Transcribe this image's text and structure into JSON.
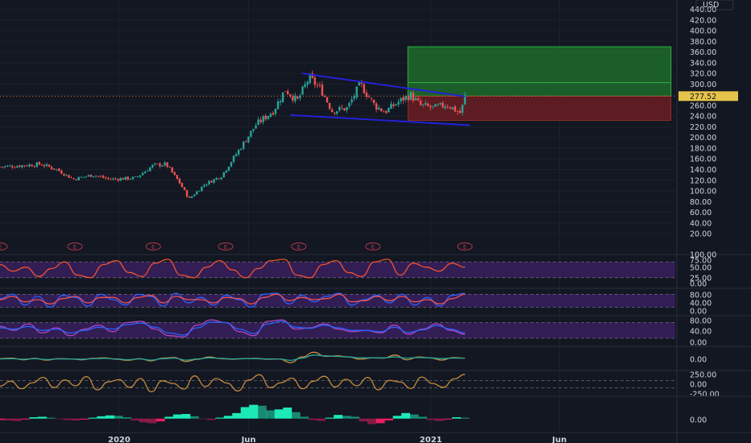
{
  "currency": "USD",
  "current_price_label": "277.52",
  "earnings_marker": "E",
  "colors": {
    "background": "#131722",
    "up": "#26a69a",
    "down": "#ef5350",
    "trendline": "#2421d6",
    "target_zone": "#1f6b2b",
    "stop_zone": "#6b1c22",
    "osc_band": "#3a1f5e",
    "rsi_line": "#f0532e",
    "stoch_k": "#2962ff",
    "stoch_d": "#ef5350",
    "osc3_line": "#ab47bc",
    "osc3_line2": "#2962ff",
    "cci_line": "#c68b3c",
    "ao_up": "#1de9b6",
    "ao_down": "#e91e63",
    "price_tag": "#e6c34a"
  },
  "chart_data": [
    {
      "type": "candlestick",
      "title": "",
      "ylabel": "USD",
      "ylim": [
        5,
        450
      ],
      "yticks": [
        20,
        40,
        60,
        80,
        100,
        120,
        140,
        160,
        180,
        200,
        220,
        240,
        260,
        280,
        300,
        320,
        340,
        360,
        380,
        400,
        420,
        440
      ],
      "ytick_labels": [
        "20.00",
        "40.00",
        "60.00",
        "80.00",
        "100.00",
        "120.00",
        "140.00",
        "160.00",
        "180.00",
        "200.00",
        "220.00",
        "240.00",
        "260.00",
        "280.00",
        "300.00",
        "320.00",
        "340.00",
        "360.00",
        "380.00",
        "400.00",
        "420.00",
        "440.00"
      ],
      "x_labels": [
        "2020",
        "Jun",
        "2021",
        "Jun"
      ],
      "x_label_dates": [
        "2020-01-01",
        "2020-06-01",
        "2021-01-01",
        "2021-06-01"
      ],
      "x_range": [
        "2019-08-14",
        "2021-10-15"
      ],
      "price_path": [
        {
          "date": "2019-08-14",
          "price": 145
        },
        {
          "date": "2019-10-01",
          "price": 150
        },
        {
          "date": "2019-10-20",
          "price": 140
        },
        {
          "date": "2019-11-08",
          "price": 122
        },
        {
          "date": "2019-12-01",
          "price": 130
        },
        {
          "date": "2019-12-20",
          "price": 122
        },
        {
          "date": "2020-01-20",
          "price": 124
        },
        {
          "date": "2020-02-10",
          "price": 148
        },
        {
          "date": "2020-02-25",
          "price": 150
        },
        {
          "date": "2020-03-12",
          "price": 115
        },
        {
          "date": "2020-03-23",
          "price": 85
        },
        {
          "date": "2020-04-02",
          "price": 100
        },
        {
          "date": "2020-04-10",
          "price": 112
        },
        {
          "date": "2020-04-30",
          "price": 128
        },
        {
          "date": "2020-05-22",
          "price": 180
        },
        {
          "date": "2020-06-10",
          "price": 225
        },
        {
          "date": "2020-06-30",
          "price": 250
        },
        {
          "date": "2020-07-14",
          "price": 290
        },
        {
          "date": "2020-07-28",
          "price": 268
        },
        {
          "date": "2020-08-11",
          "price": 312
        },
        {
          "date": "2020-08-25",
          "price": 290
        },
        {
          "date": "2020-09-07",
          "price": 250
        },
        {
          "date": "2020-09-25",
          "price": 255
        },
        {
          "date": "2020-10-10",
          "price": 300
        },
        {
          "date": "2020-10-27",
          "price": 260
        },
        {
          "date": "2020-11-08",
          "price": 248
        },
        {
          "date": "2020-11-25",
          "price": 268
        },
        {
          "date": "2020-12-08",
          "price": 280
        },
        {
          "date": "2020-12-20",
          "price": 260
        },
        {
          "date": "2021-01-05",
          "price": 255
        },
        {
          "date": "2021-01-20",
          "price": 262
        },
        {
          "date": "2021-02-05",
          "price": 245
        },
        {
          "date": "2021-02-10",
          "price": 277
        }
      ],
      "trendlines": [
        {
          "from": {
            "date": "2020-08-03",
            "price": 320
          },
          "to": {
            "date": "2021-02-10",
            "price": 277
          }
        },
        {
          "from": {
            "date": "2020-07-20",
            "price": 242
          },
          "to": {
            "date": "2021-02-16",
            "price": 223
          }
        }
      ],
      "position_box": {
        "from": "2020-12-05",
        "to": "2021-10-10",
        "entry": 277.52,
        "target": 370,
        "stop": 232,
        "mid_target": 303
      },
      "earnings_dates": [
        "2019-08-14",
        "2019-11-10",
        "2020-02-10",
        "2020-05-05",
        "2020-07-30",
        "2020-10-25",
        "2021-02-10"
      ]
    },
    {
      "type": "line",
      "title": "",
      "ytick_labels": [
        "0.00",
        "25.00",
        "50.00",
        "75.00",
        "100.00"
      ],
      "ylim": [
        -2,
        102
      ],
      "band": [
        20,
        80
      ],
      "series": [
        {
          "values": [
            70,
            45,
            60,
            25,
            55,
            80,
            30,
            20,
            70,
            85,
            40,
            25,
            75,
            90,
            30,
            20,
            60,
            85,
            50,
            20,
            55,
            85,
            90,
            30,
            20,
            70,
            85,
            40,
            25,
            80,
            90,
            30,
            75,
            60,
            45,
            75,
            60
          ]
        }
      ]
    },
    {
      "type": "line",
      "title": "",
      "ytick_labels": [
        "0.00",
        "40.00",
        "80.00"
      ],
      "ylim": [
        -5,
        100
      ],
      "band": [
        20,
        80
      ],
      "series": [
        {
          "values": [
            60,
            80,
            30,
            70,
            20,
            75,
            65,
            25,
            80,
            55,
            30,
            80,
            70,
            25,
            85,
            40,
            65,
            30,
            75,
            55,
            20,
            80,
            85,
            35,
            75,
            45,
            70,
            85,
            30,
            55,
            75,
            40,
            80,
            30,
            65,
            25,
            75,
            85
          ]
        },
        {
          "values": [
            55,
            70,
            45,
            55,
            35,
            60,
            70,
            40,
            65,
            65,
            40,
            65,
            75,
            40,
            70,
            55,
            55,
            40,
            65,
            60,
            35,
            65,
            80,
            50,
            65,
            55,
            60,
            80,
            45,
            50,
            70,
            50,
            70,
            45,
            55,
            35,
            60,
            80
          ]
        }
      ]
    },
    {
      "type": "line",
      "title": "",
      "ytick_labels": [
        "0.00",
        "40.00",
        "80.00"
      ],
      "ylim": [
        -5,
        100
      ],
      "band": [
        20,
        80
      ],
      "series": [
        {
          "values": [
            65,
            50,
            75,
            40,
            60,
            30,
            55,
            70,
            45,
            80,
            85,
            55,
            30,
            25,
            70,
            90,
            80,
            45,
            30,
            85,
            90,
            55,
            60,
            75,
            55,
            45,
            50,
            40,
            70,
            35,
            55,
            75,
            50,
            35
          ]
        },
        {
          "values": [
            60,
            55,
            65,
            50,
            55,
            40,
            50,
            62,
            55,
            72,
            78,
            62,
            40,
            32,
            60,
            82,
            80,
            55,
            38,
            75,
            85,
            62,
            58,
            70,
            60,
            50,
            50,
            45,
            62,
            42,
            52,
            68,
            55,
            40
          ]
        }
      ]
    },
    {
      "type": "line",
      "title": "",
      "ytick_labels": [
        "0.00"
      ],
      "ylim": [
        -40,
        40
      ],
      "series": [
        {
          "values": [
            2,
            4,
            -2,
            3,
            -3,
            2,
            1,
            -2,
            3,
            5,
            0,
            -4,
            2,
            -6,
            4,
            6,
            -8,
            0,
            8,
            2,
            0,
            2,
            3,
            0,
            1,
            -12,
            8,
            25,
            10,
            12,
            8,
            0,
            5,
            4,
            15,
            -2,
            8,
            5,
            -3,
            6,
            4
          ]
        },
        {
          "values": [
            1,
            2,
            0,
            2,
            -1,
            1,
            1,
            0,
            2,
            3,
            1,
            -2,
            1,
            -3,
            2,
            4,
            -3,
            1,
            5,
            3,
            1,
            2,
            2,
            1,
            1,
            -4,
            4,
            15,
            12,
            10,
            8,
            5,
            5,
            5,
            8,
            4,
            6,
            5,
            2,
            4,
            4
          ]
        }
      ]
    },
    {
      "type": "line",
      "title": "",
      "ytick_labels": [
        "250.00",
        "0.00",
        "-250.00"
      ],
      "ylim": [
        -320,
        320
      ],
      "hlines": [
        100,
        -100
      ],
      "series": [
        {
          "values": [
            -50,
            80,
            -120,
            40,
            180,
            -90,
            110,
            -40,
            200,
            -150,
            60,
            120,
            -80,
            150,
            -200,
            90,
            20,
            -130,
            220,
            -60,
            150,
            30,
            -180,
            110,
            250,
            -90,
            40,
            160,
            -120,
            80,
            210,
            -70,
            130,
            -40,
            180,
            -150,
            100,
            60,
            -110,
            190,
            20,
            -80,
            140,
            260
          ]
        }
      ]
    },
    {
      "type": "bar",
      "title": "",
      "ytick_labels": [
        "0.00"
      ],
      "ylim": [
        -25,
        45
      ],
      "values": [
        -3,
        -4,
        -5,
        -2,
        3,
        4,
        2,
        -1,
        -3,
        -4,
        -2,
        2,
        5,
        7,
        6,
        3,
        -4,
        -8,
        -10,
        -6,
        4,
        9,
        10,
        5,
        -1,
        -3,
        2,
        6,
        12,
        25,
        30,
        28,
        18,
        20,
        24,
        14,
        4,
        -3,
        -5,
        2,
        8,
        6,
        4,
        -6,
        -12,
        -10,
        -4,
        6,
        12,
        9,
        4,
        -3,
        -5,
        -2,
        3,
        2
      ]
    }
  ]
}
